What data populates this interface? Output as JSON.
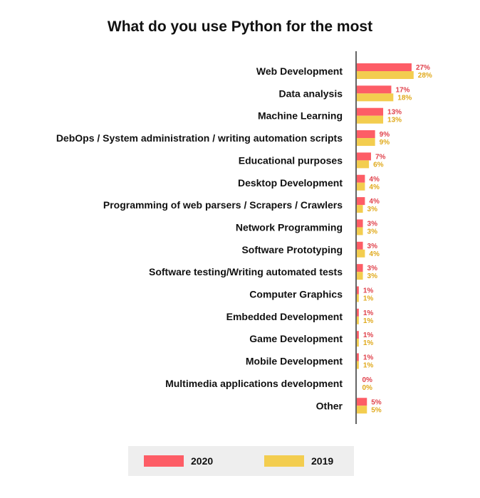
{
  "chart_data": {
    "type": "bar",
    "orientation": "horizontal",
    "title": "What do you use Python for the most",
    "categories": [
      "Web Development",
      "Data analysis",
      "Machine Learning",
      "DebOps / System administration / writing automation scripts",
      "Educational purposes",
      "Desktop Development",
      "Programming of web parsers / Scrapers / Crawlers",
      "Network Programming",
      "Software Prototyping",
      "Software testing/Writing automated tests",
      "Computer Graphics",
      "Embedded Development",
      "Game Development",
      "Mobile Development",
      "Multimedia applications development",
      "Other"
    ],
    "series": [
      {
        "name": "2020",
        "color": "#fd5d66",
        "values": [
          27,
          17,
          13,
          9,
          7,
          4,
          4,
          3,
          3,
          3,
          1,
          1,
          1,
          1,
          0,
          5
        ],
        "value_labels": [
          "27%",
          "17%",
          "13%",
          "9%",
          "7%",
          "4%",
          "4%",
          "3%",
          "3%",
          "3%",
          "1%",
          "1%",
          "1%",
          "1%",
          "0%",
          "5%"
        ]
      },
      {
        "name": "2019",
        "color": "#f3cd4f",
        "values": [
          28,
          18,
          13,
          9,
          6,
          4,
          3,
          3,
          4,
          3,
          1,
          1,
          1,
          1,
          0,
          5
        ],
        "value_labels": [
          "28%",
          "18%",
          "13%",
          "9%",
          "6%",
          "4%",
          "3%",
          "3%",
          "4%",
          "3%",
          "1%",
          "1%",
          "1%",
          "1%",
          "0%",
          "5%"
        ]
      }
    ],
    "value_unit": "%",
    "grid": false,
    "legend_position": "bottom"
  },
  "colors": {
    "2020_label": "#e0424c",
    "2019_label": "#e0a91b",
    "axis": "#111111",
    "legend_background": "#eeeeee"
  }
}
